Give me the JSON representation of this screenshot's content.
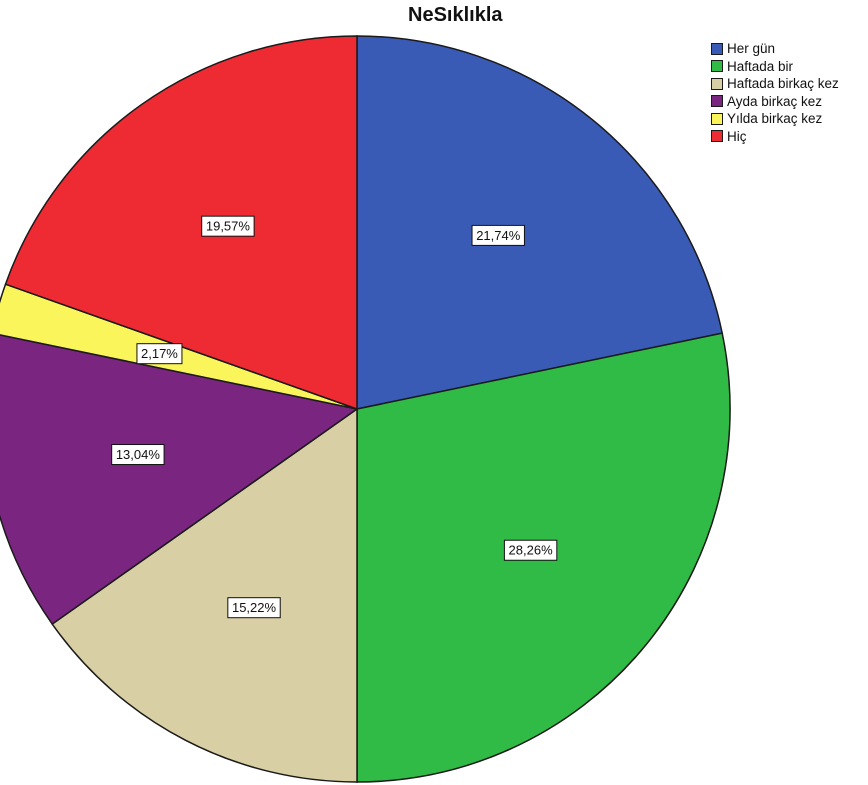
{
  "chart_data": {
    "type": "pie",
    "title": "NeSıklıkla",
    "legend_position": "top-right",
    "start_angle_deg": 0,
    "direction": "clockwise",
    "slices": [
      {
        "name": "Her gün",
        "value": 21.74,
        "label": "21,74%",
        "color": "#3a5bb5"
      },
      {
        "name": "Haftada bir",
        "value": 28.26,
        "label": "28,26%",
        "color": "#2fbb45"
      },
      {
        "name": "Haftada birkaç kez",
        "value": 15.22,
        "label": "15,22%",
        "color": "#d8cfa4"
      },
      {
        "name": "Ayda birkaç kez",
        "value": 13.04,
        "label": "13,04%",
        "color": "#7a2580"
      },
      {
        "name": "Yılda birkaç kez",
        "value": 2.17,
        "label": "2,17%",
        "color": "#fbf55c"
      },
      {
        "name": "Hiç",
        "value": 19.57,
        "label": "19,57%",
        "color": "#ee2a33"
      }
    ]
  }
}
